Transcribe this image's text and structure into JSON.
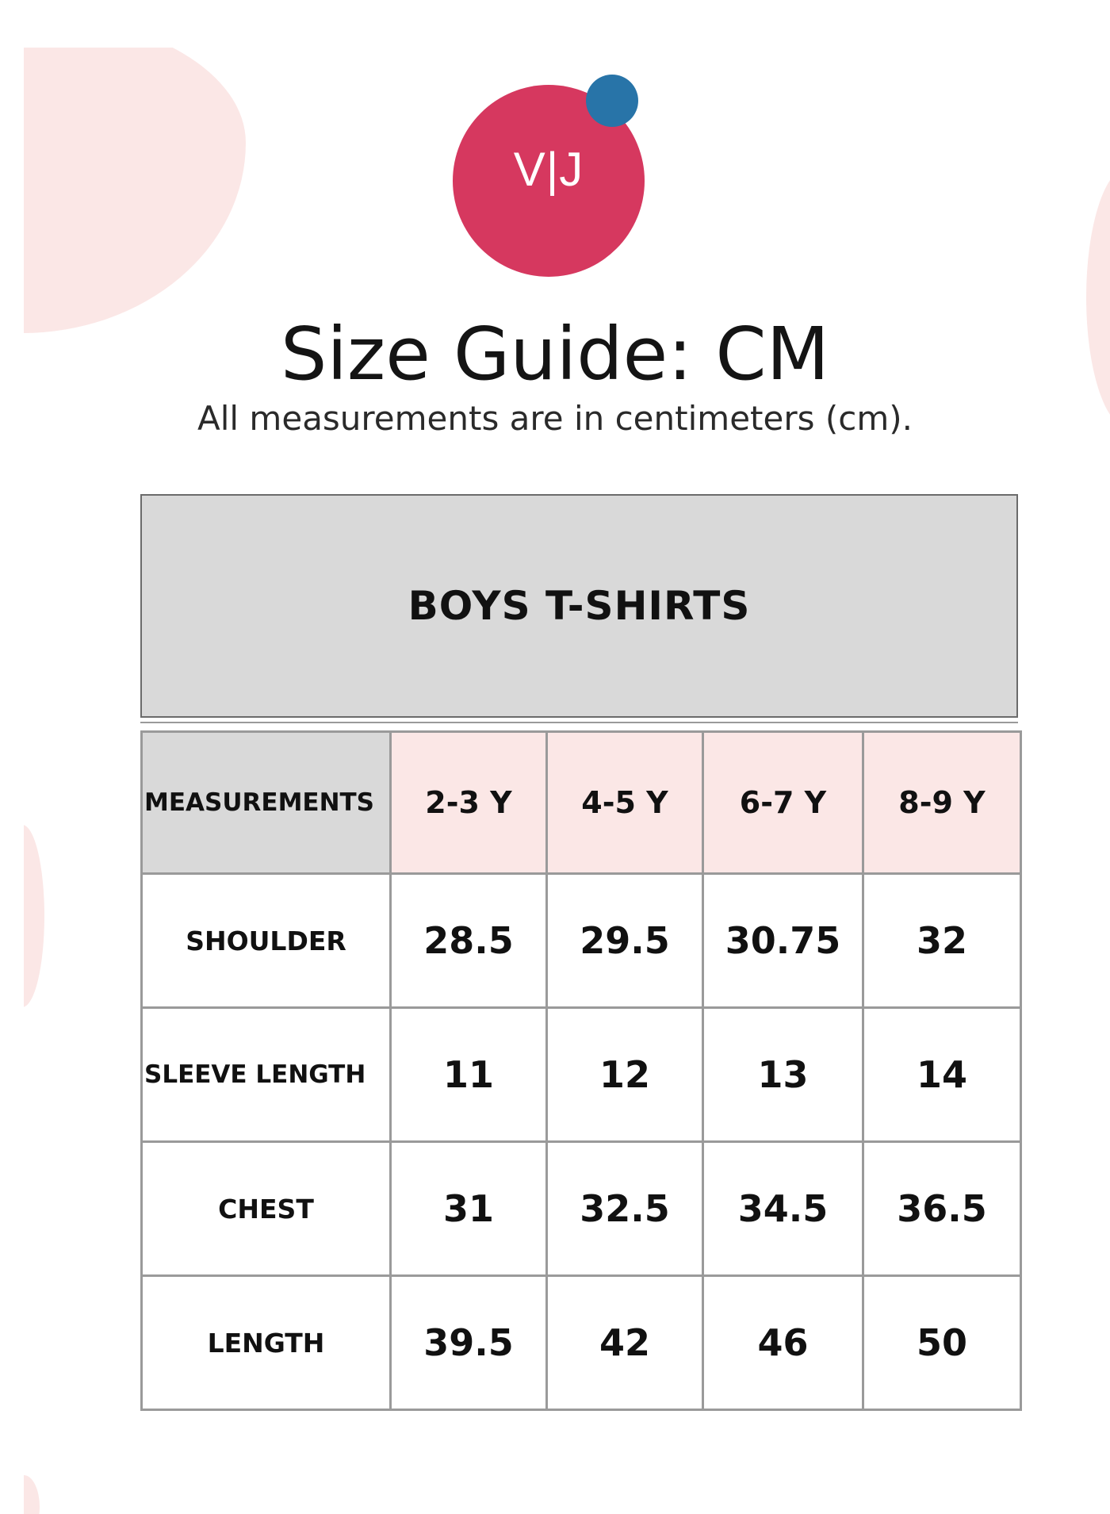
{
  "logo": {
    "text": "V|J",
    "colors": {
      "circle": "#d6385f",
      "dot": "#2874a8"
    }
  },
  "header": {
    "title": "Size Guide: CM",
    "subtitle": "All measurements are in centimeters (cm)."
  },
  "table": {
    "title": "BOYS T-SHIRTS",
    "corner_label": "MEASUREMENTS",
    "columns": [
      "2-3 Y",
      "4-5 Y",
      "6-7 Y",
      "8-9 Y"
    ],
    "rows": [
      {
        "label": "SHOULDER",
        "values": [
          "28.5",
          "29.5",
          "30.75",
          "32"
        ]
      },
      {
        "label": "SLEEVE LENGTH",
        "values": [
          "11",
          "12",
          "13",
          "14"
        ]
      },
      {
        "label": "CHEST",
        "values": [
          "31",
          "32.5",
          "34.5",
          "36.5"
        ]
      },
      {
        "label": "LENGTH",
        "values": [
          "39.5",
          "42",
          "46",
          "50"
        ]
      }
    ],
    "colors": {
      "header_bg": "#d9d9d9",
      "size_header_bg": "#fbe7e6",
      "border": "#9a9a9a"
    }
  },
  "background": {
    "blob_color": "#fbe7e6"
  }
}
